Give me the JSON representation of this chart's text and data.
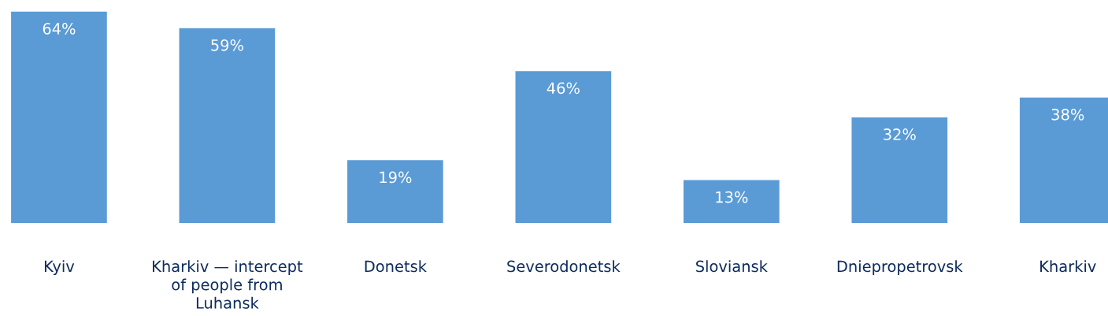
{
  "chart_data": {
    "type": "bar",
    "categories": [
      "Kyiv",
      "Kharkiv — intercept of people from Luhansk",
      "Donetsk",
      "Severodonetsk",
      "Sloviansk",
      "Dniepropetrovsk",
      "Kharkiv"
    ],
    "values": [
      64,
      59,
      19,
      46,
      13,
      32,
      38
    ],
    "color": "#5b9bd5",
    "value_labels": [
      "64%",
      "59%",
      "19%",
      "46%",
      "13%",
      "32%",
      "38%"
    ],
    "tick_labels": "x"
  }
}
